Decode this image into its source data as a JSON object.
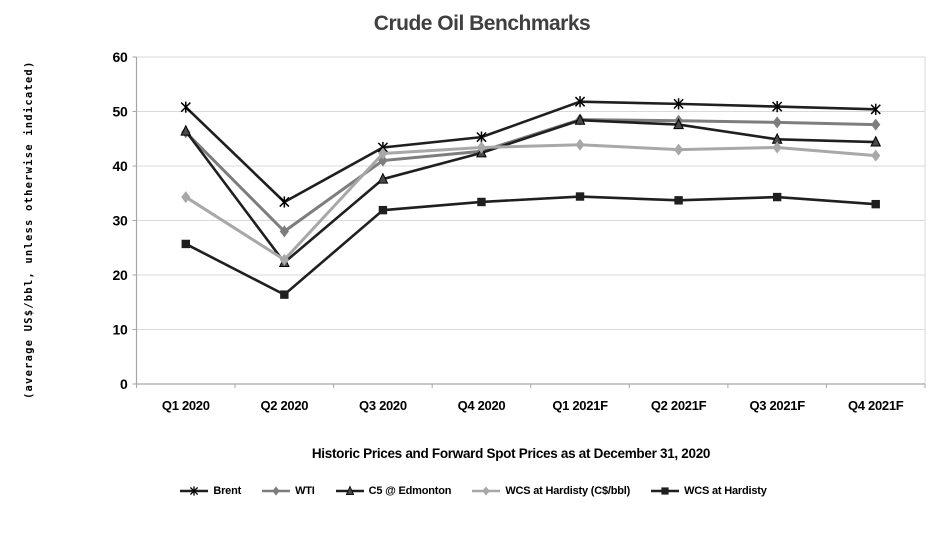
{
  "chart": {
    "title": "Crude Oil Benchmarks",
    "subtitle": "Historic Prices and Forward Spot Prices as at December 31, 2020",
    "y_axis_title": "(average US$/bbl, unless otherwise indicated)"
  },
  "colors": {
    "title_text": "#3f3f3f",
    "black_series": "#1f1f1f",
    "gray_series_wti": "#7d7d7d",
    "gray_series_wcs_cad": "#a8a8a8",
    "gridline": "#d9d9d9",
    "axis": "#a6a6a6"
  },
  "chart_data": {
    "type": "line",
    "title": "Crude Oil Benchmarks",
    "subtitle": "Historic Prices and Forward Spot Prices as at December 31, 2020",
    "xlabel": "",
    "ylabel": "(average US$/bbl, unless otherwise indicated)",
    "ylim": [
      0,
      60
    ],
    "ytick_step": 10,
    "grid": true,
    "legend_position": "bottom",
    "categories": [
      "Q1 2020",
      "Q2 2020",
      "Q3 2020",
      "Q4 2020",
      "Q1 2021F",
      "Q2 2021F",
      "Q3 2021F",
      "Q4 2021F"
    ],
    "series": [
      {
        "name": "Brent",
        "key": "brent",
        "marker": "star",
        "color": "#1f1f1f",
        "line_width": 2.6,
        "values": [
          50.8,
          33.4,
          43.4,
          45.3,
          51.8,
          51.4,
          50.9,
          50.4
        ]
      },
      {
        "name": "WTI",
        "key": "wti",
        "marker": "diamond",
        "color": "#7d7d7d",
        "line_width": 3.0,
        "values": [
          46.2,
          28.0,
          41.0,
          42.7,
          48.5,
          48.3,
          48.0,
          47.6
        ]
      },
      {
        "name": "C5 @ Edmonton",
        "key": "c5-edmonton",
        "marker": "triangle",
        "color": "#1f1f1f",
        "line_width": 2.6,
        "values": [
          46.4,
          22.3,
          37.6,
          42.4,
          48.4,
          47.6,
          44.9,
          44.4
        ]
      },
      {
        "name": "WCS at Hardisty (C$/bbl)",
        "key": "wcs-hardisty-cad",
        "marker": "diamond",
        "color": "#a8a8a8",
        "line_width": 3.0,
        "values": [
          34.3,
          22.8,
          42.3,
          43.4,
          43.9,
          43.0,
          43.4,
          41.9
        ]
      },
      {
        "name": "WCS at Hardisty",
        "key": "wcs-hardisty",
        "marker": "square",
        "color": "#1f1f1f",
        "line_width": 2.6,
        "values": [
          25.7,
          16.4,
          31.9,
          33.4,
          34.4,
          33.7,
          34.3,
          33.0
        ]
      }
    ]
  }
}
